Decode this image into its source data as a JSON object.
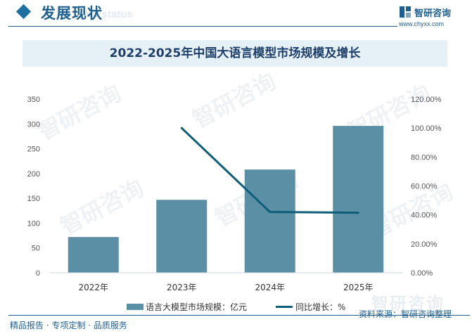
{
  "header": {
    "section_title": "发展现状",
    "section_subtitle": "ent status",
    "brand_name": "智研咨询",
    "brand_url": "www.chyxx.com"
  },
  "watermark": {
    "text": "智研咨询"
  },
  "footer": {
    "left_text": "精品报告 · 专项定制 · 品质服务",
    "source": "资料来源：智研咨询整理"
  },
  "colors": {
    "bar": "#5b8fa6",
    "line": "#0e5e7a",
    "accent": "#1f5f8f"
  },
  "chart_data": {
    "type": "bar",
    "title": "2022-2025年中国大语言模型市场规模及增长",
    "categories": [
      "2022年",
      "2023年",
      "2024年",
      "2025年"
    ],
    "series": [
      {
        "name": "语言大模型市场规模：亿元",
        "type": "bar",
        "axis": "left",
        "values": [
          72,
          147,
          208,
          296
        ]
      },
      {
        "name": "同比增长：%",
        "type": "line",
        "axis": "right",
        "values": [
          null,
          100,
          42,
          41.5
        ]
      }
    ],
    "y_left": {
      "min": 0,
      "max": 350,
      "ticks": [
        "0",
        "50",
        "100",
        "150",
        "200",
        "250",
        "300",
        "350"
      ]
    },
    "y_right": {
      "min": 0,
      "max": 120,
      "ticks": [
        "0.00%",
        "20.00%",
        "40.00%",
        "60.00%",
        "80.00%",
        "100.00%",
        "120.00%"
      ]
    },
    "grid": false,
    "legend": "bottom"
  }
}
